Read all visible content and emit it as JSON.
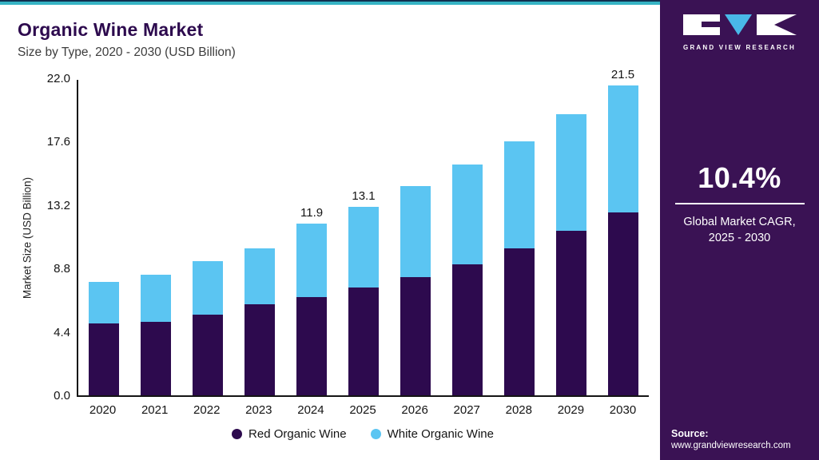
{
  "header": {
    "title": "Organic Wine Market",
    "subtitle": "Size by Type, 2020 - 2030 (USD Billion)"
  },
  "chart_data": {
    "type": "bar",
    "stacked": true,
    "title": "Organic Wine Market Size by Type, 2020 - 2030 (USD Billion)",
    "xlabel": "",
    "ylabel": "Market Size (USD Billion)",
    "ylim": [
      0,
      22
    ],
    "yticks": [
      0.0,
      4.4,
      8.8,
      13.2,
      17.6,
      22.0
    ],
    "grid": false,
    "legend_position": "bottom",
    "categories": [
      "2020",
      "2021",
      "2022",
      "2023",
      "2024",
      "2025",
      "2026",
      "2027",
      "2028",
      "2029",
      "2030"
    ],
    "series": [
      {
        "name": "Red Organic Wine",
        "color": "#2d0a4e",
        "values": [
          5.0,
          5.1,
          5.6,
          6.3,
          6.8,
          7.5,
          8.2,
          9.1,
          10.2,
          11.4,
          12.7
        ]
      },
      {
        "name": "White Organic Wine",
        "color": "#5bc5f2",
        "values": [
          2.9,
          3.3,
          3.7,
          3.9,
          5.1,
          5.6,
          6.3,
          6.9,
          7.4,
          8.1,
          8.8
        ]
      }
    ],
    "totals": [
      7.9,
      8.4,
      9.3,
      10.2,
      11.9,
      13.1,
      14.5,
      16.0,
      17.6,
      19.5,
      21.5
    ],
    "bar_labels": [
      "",
      "",
      "",
      "",
      "11.9",
      "13.1",
      "",
      "",
      "",
      "",
      "21.5"
    ]
  },
  "sidebar": {
    "brand": "GRAND VIEW RESEARCH",
    "cagr_value": "10.4%",
    "cagr_caption_line1": "Global Market CAGR,",
    "cagr_caption_line2": "2025 - 2030",
    "source_label": "Source:",
    "source_url": "www.grandviewresearch.com"
  },
  "colors": {
    "top_accent": "#36b3c4",
    "sidebar_bg": "#3a1254",
    "red_series": "#2d0a4e",
    "white_series": "#5bc5f2",
    "logo_triangle": "#49b8e8"
  }
}
